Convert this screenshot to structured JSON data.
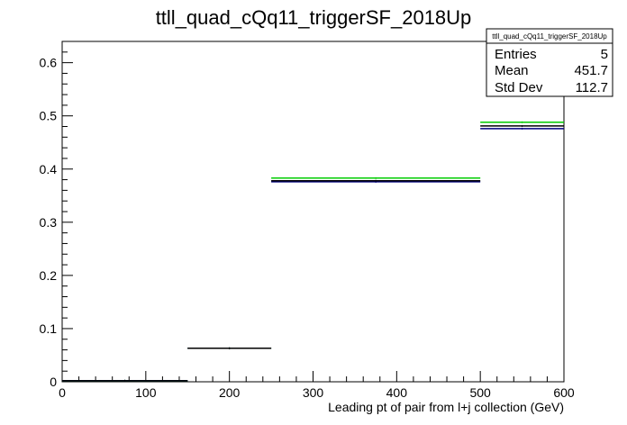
{
  "chart_data": {
    "type": "histogram",
    "title": "ttll_quad_cQq11_triggerSF_2018Up",
    "xlabel": "Leading pt of pair from l+j collection (GeV)",
    "ylabel": "",
    "xlim": [
      0,
      600
    ],
    "ylim": [
      0,
      0.64
    ],
    "x_ticks": [
      0,
      100,
      200,
      300,
      400,
      500,
      600
    ],
    "y_ticks": [
      0,
      0.1,
      0.2,
      0.3,
      0.4,
      0.5,
      0.6
    ],
    "grid": false,
    "colors": {
      "nominal": "#000000",
      "variation_up": "#00cc00",
      "variation_down": "#00007f"
    },
    "series": [
      {
        "key": "nominal",
        "bins": [
          {
            "lo": 0,
            "hi": 150,
            "value": 0.002
          },
          {
            "lo": 150,
            "hi": 250,
            "value": 0.063
          },
          {
            "lo": 250,
            "hi": 500,
            "value": 0.378
          },
          {
            "lo": 500,
            "hi": 600,
            "value": 0.481
          }
        ]
      },
      {
        "key": "variation_up",
        "bins": [
          {
            "lo": 0,
            "hi": 150,
            "value": 0.002
          },
          {
            "lo": 150,
            "hi": 250,
            "value": 0.063
          },
          {
            "lo": 250,
            "hi": 500,
            "value": 0.383
          },
          {
            "lo": 500,
            "hi": 600,
            "value": 0.488
          }
        ]
      },
      {
        "key": "variation_down",
        "bins": [
          {
            "lo": 0,
            "hi": 150,
            "value": 0.002
          },
          {
            "lo": 150,
            "hi": 250,
            "value": 0.063
          },
          {
            "lo": 250,
            "hi": 500,
            "value": 0.376
          },
          {
            "lo": 500,
            "hi": 600,
            "value": 0.476
          }
        ]
      }
    ],
    "stats_box": {
      "title": "ttll_quad_cQq11_triggerSF_2018Up",
      "rows": [
        {
          "label": "Entries",
          "value": "5"
        },
        {
          "label": "Mean",
          "value": "451.7"
        },
        {
          "label": "Std Dev",
          "value": "112.7"
        }
      ]
    }
  }
}
